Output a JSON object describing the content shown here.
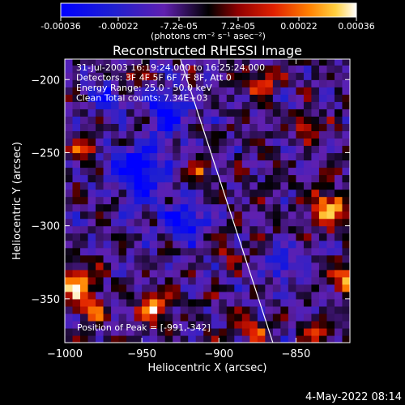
{
  "chart_data": {
    "type": "heatmap",
    "title": "Reconstructed RHESSI Image",
    "xlabel": "Heliocentric X (arcsec)",
    "ylabel": "Heliocentric Y (arcsec)",
    "xlim": [
      -1000,
      -815
    ],
    "ylim": [
      -380,
      -186
    ],
    "x_ticks": [
      -1000,
      -950,
      -900,
      -850
    ],
    "y_ticks": [
      -200,
      -250,
      -300,
      -350
    ],
    "colorbar": {
      "range": [
        -0.00036,
        0.00036
      ],
      "ticks": [
        {
          "value": -0.00036,
          "label": "-0.00036"
        },
        {
          "value": -0.00022,
          "label": "-0.00022"
        },
        {
          "value": -7.2e-05,
          "label": "-7.2e-05"
        },
        {
          "value": 7.2e-05,
          "label": "7.2e-05"
        },
        {
          "value": 0.00022,
          "label": "0.00022"
        },
        {
          "value": 0.00036,
          "label": "0.00036"
        }
      ],
      "units": "(photons cm⁻² s⁻¹ asec⁻²)"
    },
    "annotations": [
      "31-Jul-2003 16:19:24.000 to 16:25:24.000",
      "Detectors: 3F 4F 5F 6F 7F 8F, Att 0",
      "Energy Range: 25.0 - 50.0 keV",
      "Clean     Total counts: 7.34E+03"
    ],
    "peak_label": "Position of Peak = [-991,-342]",
    "limb_line": {
      "x": [
        -925,
        -865
      ],
      "y": [
        -186,
        -380
      ]
    },
    "hotspots": [
      {
        "x": -945,
        "y": -358,
        "r": 10,
        "v": 1.0
      },
      {
        "x": -995,
        "y": -343,
        "r": 12,
        "v": 1.0
      },
      {
        "x": -985,
        "y": -360,
        "r": 8,
        "v": 0.9
      },
      {
        "x": -990,
        "y": -250,
        "r": 7,
        "v": 0.8
      },
      {
        "x": -875,
        "y": -205,
        "r": 9,
        "v": 0.85
      },
      {
        "x": -845,
        "y": -235,
        "r": 8,
        "v": 0.75
      },
      {
        "x": -830,
        "y": -290,
        "r": 12,
        "v": 0.95
      },
      {
        "x": -820,
        "y": -340,
        "r": 10,
        "v": 0.8
      },
      {
        "x": -880,
        "y": -375,
        "r": 8,
        "v": 0.7
      },
      {
        "x": -840,
        "y": -375,
        "r": 8,
        "v": 0.7
      },
      {
        "x": -915,
        "y": -265,
        "r": 8,
        "v": 0.6
      },
      {
        "x": -895,
        "y": -320,
        "r": 7,
        "v": 0.55
      },
      {
        "x": -960,
        "y": -200,
        "r": 6,
        "v": 0.55
      }
    ],
    "coldspots": [
      {
        "x": -955,
        "y": -265,
        "r": 18,
        "v": -0.9
      },
      {
        "x": -935,
        "y": -225,
        "r": 14,
        "v": -0.8
      },
      {
        "x": -925,
        "y": -300,
        "r": 14,
        "v": -0.75
      },
      {
        "x": -975,
        "y": -215,
        "r": 10,
        "v": -0.6
      },
      {
        "x": -860,
        "y": -330,
        "r": 10,
        "v": -0.65
      }
    ]
  },
  "footer": {
    "date": "4-May-2022 08:14"
  }
}
